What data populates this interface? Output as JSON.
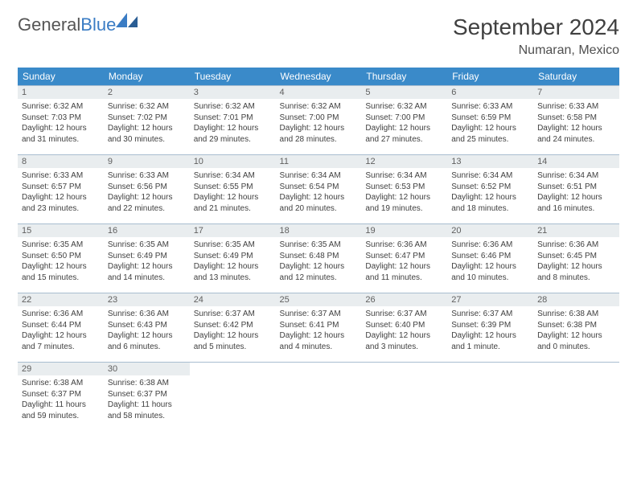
{
  "brand": {
    "name_part1": "General",
    "name_part2": "Blue"
  },
  "title": "September 2024",
  "location": "Numaran, Mexico",
  "colors": {
    "header_bg": "#3a8ac9",
    "header_text": "#ffffff",
    "daynum_bg": "#e9edef",
    "border": "#a8bdd0",
    "logo_blue": "#3a7cc4",
    "text": "#404040"
  },
  "weekdays": [
    "Sunday",
    "Monday",
    "Tuesday",
    "Wednesday",
    "Thursday",
    "Friday",
    "Saturday"
  ],
  "weeks": [
    [
      {
        "n": "1",
        "sr": "Sunrise: 6:32 AM",
        "ss": "Sunset: 7:03 PM",
        "dl": "Daylight: 12 hours and 31 minutes."
      },
      {
        "n": "2",
        "sr": "Sunrise: 6:32 AM",
        "ss": "Sunset: 7:02 PM",
        "dl": "Daylight: 12 hours and 30 minutes."
      },
      {
        "n": "3",
        "sr": "Sunrise: 6:32 AM",
        "ss": "Sunset: 7:01 PM",
        "dl": "Daylight: 12 hours and 29 minutes."
      },
      {
        "n": "4",
        "sr": "Sunrise: 6:32 AM",
        "ss": "Sunset: 7:00 PM",
        "dl": "Daylight: 12 hours and 28 minutes."
      },
      {
        "n": "5",
        "sr": "Sunrise: 6:32 AM",
        "ss": "Sunset: 7:00 PM",
        "dl": "Daylight: 12 hours and 27 minutes."
      },
      {
        "n": "6",
        "sr": "Sunrise: 6:33 AM",
        "ss": "Sunset: 6:59 PM",
        "dl": "Daylight: 12 hours and 25 minutes."
      },
      {
        "n": "7",
        "sr": "Sunrise: 6:33 AM",
        "ss": "Sunset: 6:58 PM",
        "dl": "Daylight: 12 hours and 24 minutes."
      }
    ],
    [
      {
        "n": "8",
        "sr": "Sunrise: 6:33 AM",
        "ss": "Sunset: 6:57 PM",
        "dl": "Daylight: 12 hours and 23 minutes."
      },
      {
        "n": "9",
        "sr": "Sunrise: 6:33 AM",
        "ss": "Sunset: 6:56 PM",
        "dl": "Daylight: 12 hours and 22 minutes."
      },
      {
        "n": "10",
        "sr": "Sunrise: 6:34 AM",
        "ss": "Sunset: 6:55 PM",
        "dl": "Daylight: 12 hours and 21 minutes."
      },
      {
        "n": "11",
        "sr": "Sunrise: 6:34 AM",
        "ss": "Sunset: 6:54 PM",
        "dl": "Daylight: 12 hours and 20 minutes."
      },
      {
        "n": "12",
        "sr": "Sunrise: 6:34 AM",
        "ss": "Sunset: 6:53 PM",
        "dl": "Daylight: 12 hours and 19 minutes."
      },
      {
        "n": "13",
        "sr": "Sunrise: 6:34 AM",
        "ss": "Sunset: 6:52 PM",
        "dl": "Daylight: 12 hours and 18 minutes."
      },
      {
        "n": "14",
        "sr": "Sunrise: 6:34 AM",
        "ss": "Sunset: 6:51 PM",
        "dl": "Daylight: 12 hours and 16 minutes."
      }
    ],
    [
      {
        "n": "15",
        "sr": "Sunrise: 6:35 AM",
        "ss": "Sunset: 6:50 PM",
        "dl": "Daylight: 12 hours and 15 minutes."
      },
      {
        "n": "16",
        "sr": "Sunrise: 6:35 AM",
        "ss": "Sunset: 6:49 PM",
        "dl": "Daylight: 12 hours and 14 minutes."
      },
      {
        "n": "17",
        "sr": "Sunrise: 6:35 AM",
        "ss": "Sunset: 6:49 PM",
        "dl": "Daylight: 12 hours and 13 minutes."
      },
      {
        "n": "18",
        "sr": "Sunrise: 6:35 AM",
        "ss": "Sunset: 6:48 PM",
        "dl": "Daylight: 12 hours and 12 minutes."
      },
      {
        "n": "19",
        "sr": "Sunrise: 6:36 AM",
        "ss": "Sunset: 6:47 PM",
        "dl": "Daylight: 12 hours and 11 minutes."
      },
      {
        "n": "20",
        "sr": "Sunrise: 6:36 AM",
        "ss": "Sunset: 6:46 PM",
        "dl": "Daylight: 12 hours and 10 minutes."
      },
      {
        "n": "21",
        "sr": "Sunrise: 6:36 AM",
        "ss": "Sunset: 6:45 PM",
        "dl": "Daylight: 12 hours and 8 minutes."
      }
    ],
    [
      {
        "n": "22",
        "sr": "Sunrise: 6:36 AM",
        "ss": "Sunset: 6:44 PM",
        "dl": "Daylight: 12 hours and 7 minutes."
      },
      {
        "n": "23",
        "sr": "Sunrise: 6:36 AM",
        "ss": "Sunset: 6:43 PM",
        "dl": "Daylight: 12 hours and 6 minutes."
      },
      {
        "n": "24",
        "sr": "Sunrise: 6:37 AM",
        "ss": "Sunset: 6:42 PM",
        "dl": "Daylight: 12 hours and 5 minutes."
      },
      {
        "n": "25",
        "sr": "Sunrise: 6:37 AM",
        "ss": "Sunset: 6:41 PM",
        "dl": "Daylight: 12 hours and 4 minutes."
      },
      {
        "n": "26",
        "sr": "Sunrise: 6:37 AM",
        "ss": "Sunset: 6:40 PM",
        "dl": "Daylight: 12 hours and 3 minutes."
      },
      {
        "n": "27",
        "sr": "Sunrise: 6:37 AM",
        "ss": "Sunset: 6:39 PM",
        "dl": "Daylight: 12 hours and 1 minute."
      },
      {
        "n": "28",
        "sr": "Sunrise: 6:38 AM",
        "ss": "Sunset: 6:38 PM",
        "dl": "Daylight: 12 hours and 0 minutes."
      }
    ],
    [
      {
        "n": "29",
        "sr": "Sunrise: 6:38 AM",
        "ss": "Sunset: 6:37 PM",
        "dl": "Daylight: 11 hours and 59 minutes."
      },
      {
        "n": "30",
        "sr": "Sunrise: 6:38 AM",
        "ss": "Sunset: 6:37 PM",
        "dl": "Daylight: 11 hours and 58 minutes."
      },
      null,
      null,
      null,
      null,
      null
    ]
  ]
}
